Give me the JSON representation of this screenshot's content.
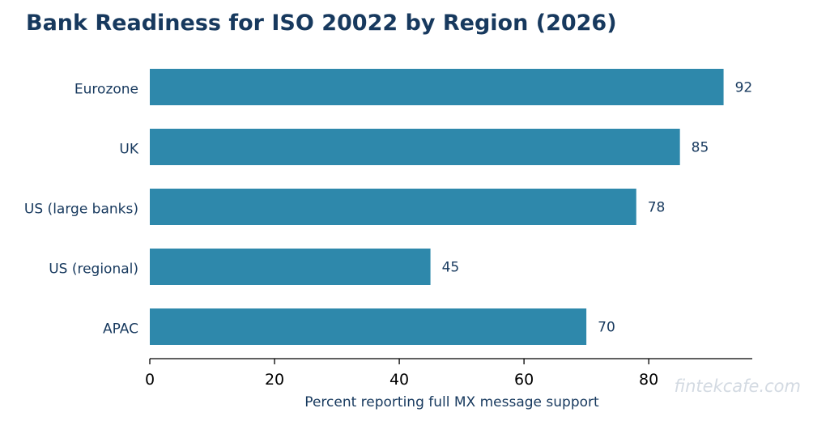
{
  "chart_data": {
    "type": "bar",
    "orientation": "horizontal",
    "title": "Bank Readiness for ISO 20022 by Region (2026)",
    "xlabel": "Percent reporting full MX message support",
    "ylabel": "",
    "categories": [
      "Eurozone",
      "UK",
      "US (large banks)",
      "US (regional)",
      "APAC"
    ],
    "values": [
      92,
      85,
      78,
      45,
      70
    ],
    "xlim": [
      0,
      96.6
    ],
    "xticks": [
      0,
      20,
      40,
      60,
      80
    ],
    "grid": false,
    "legend": "none"
  },
  "watermark": "fintekcafe.com",
  "colors": {
    "bar": "#2e88ab",
    "title": "#17395e",
    "text": "#17395e",
    "axis": "#000000",
    "watermark": "#d3dae2"
  }
}
